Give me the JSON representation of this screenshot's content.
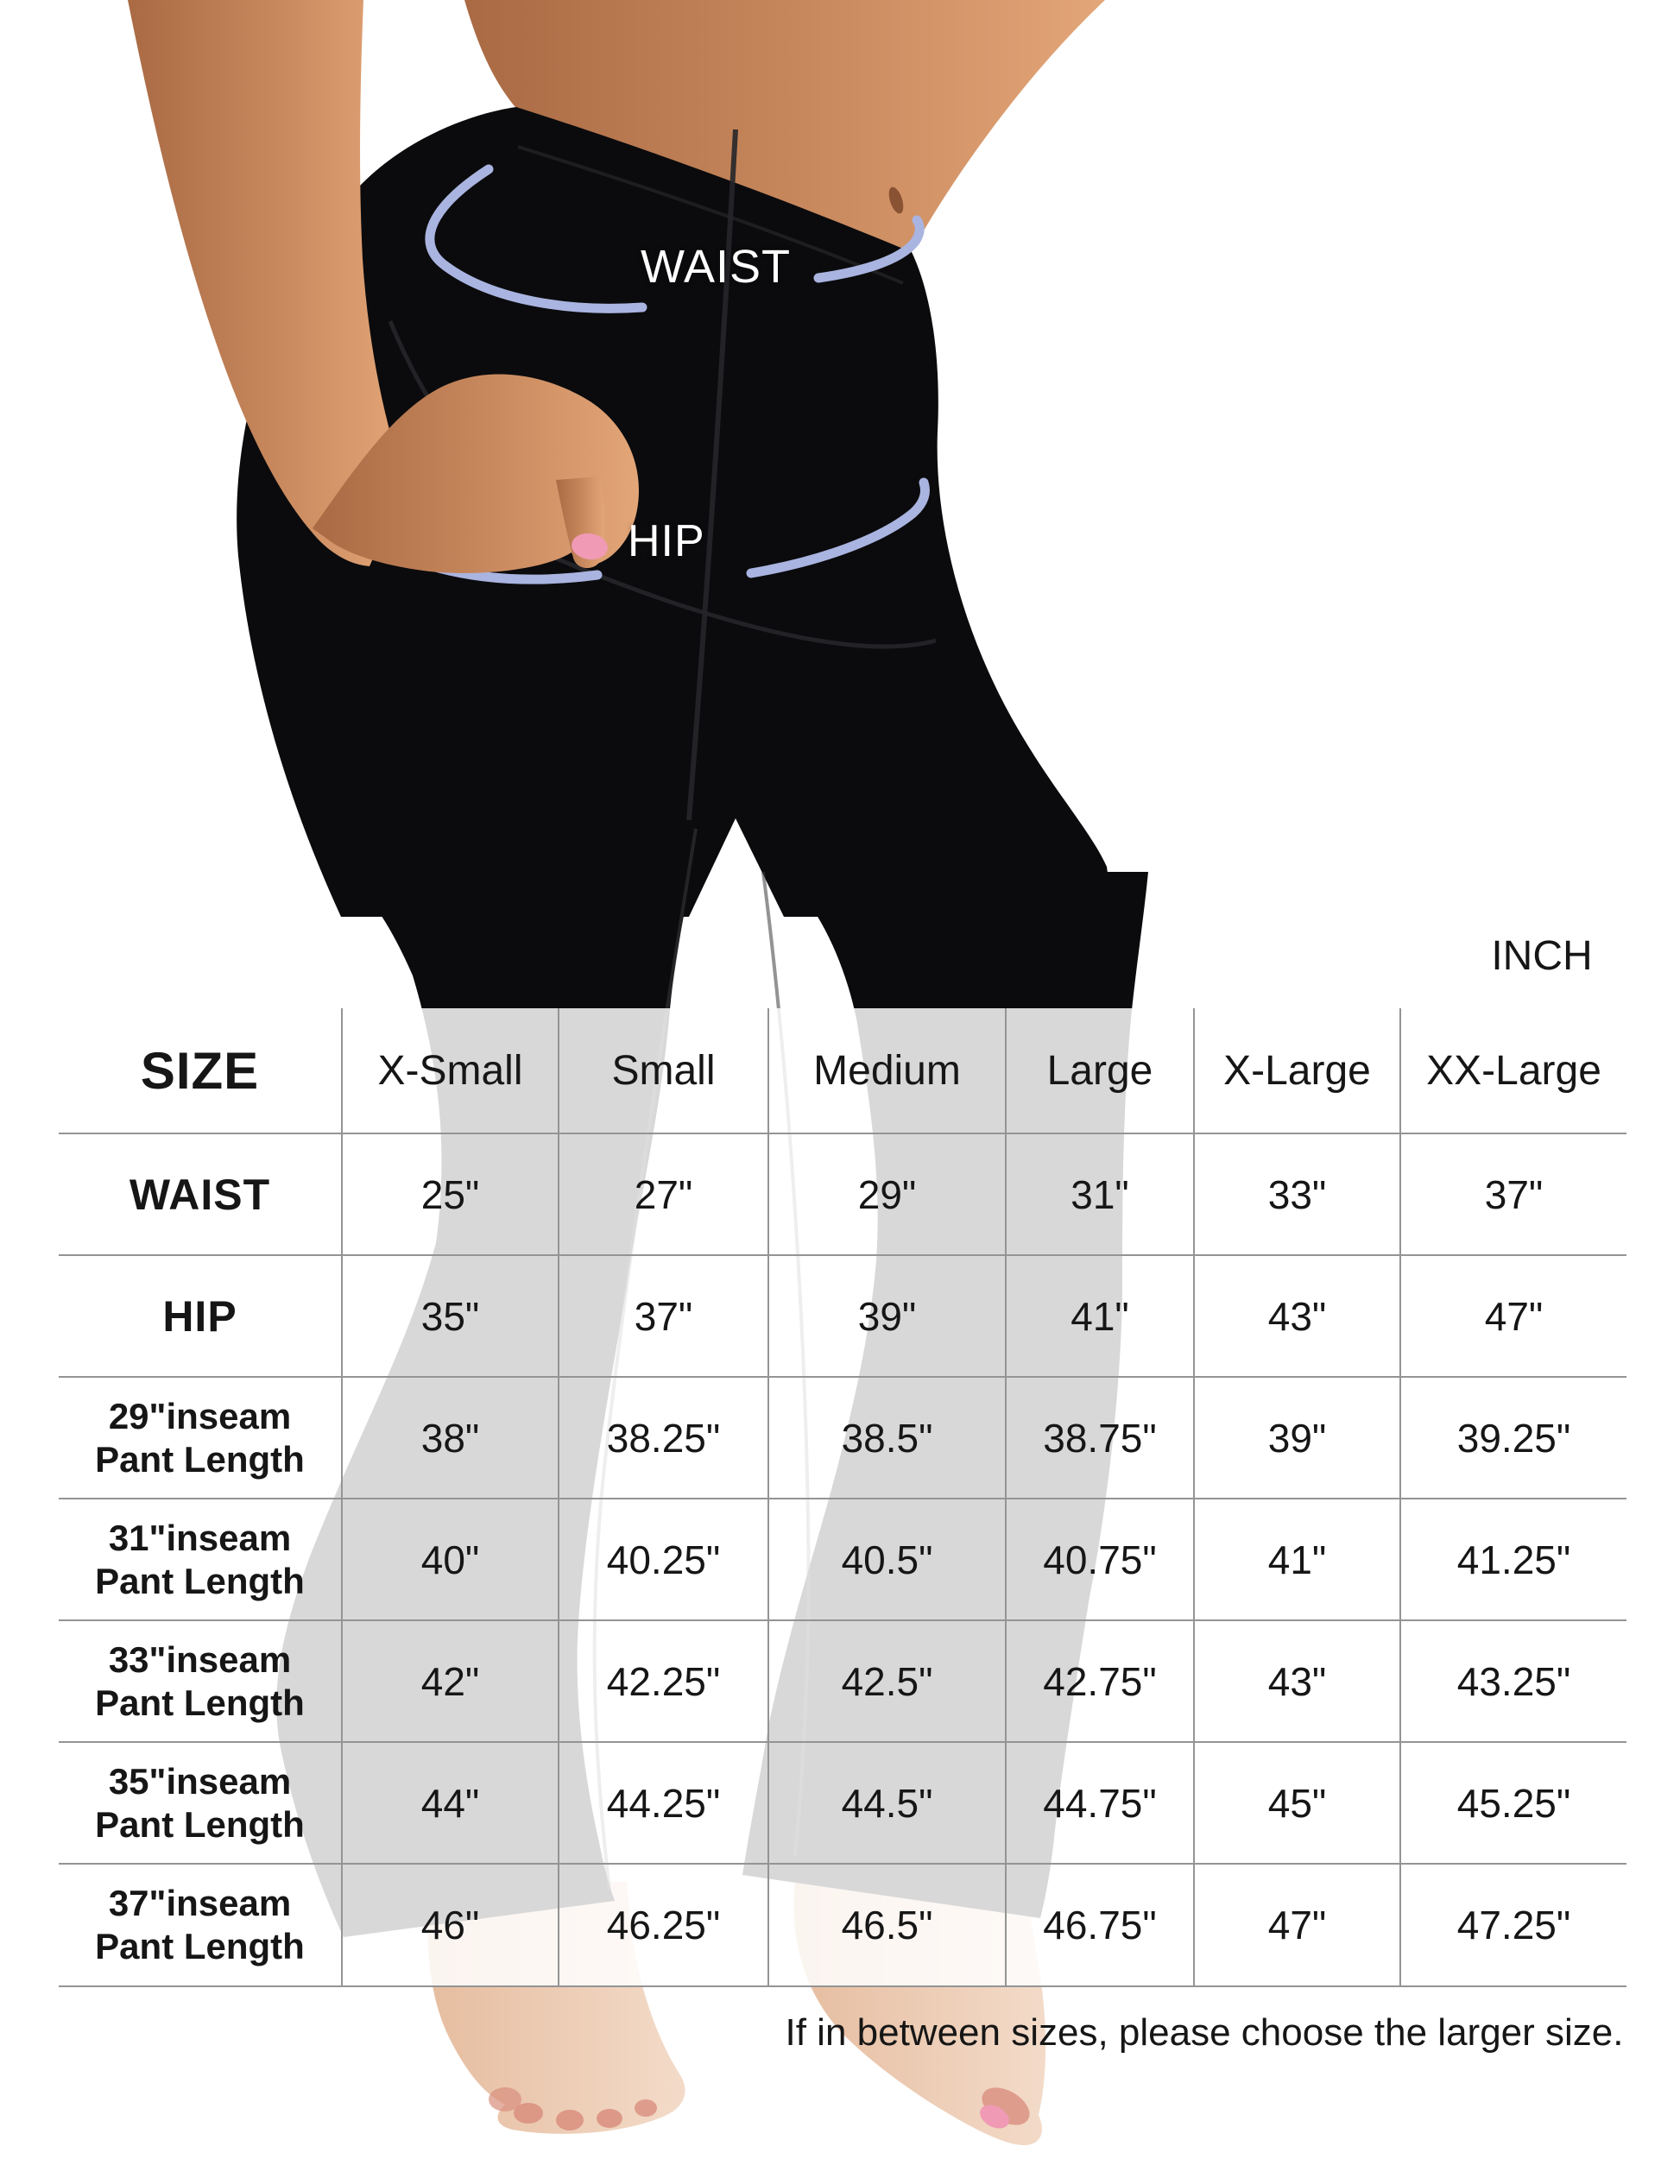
{
  "photo_callouts": {
    "waist": "WAIST",
    "hip": "HIP"
  },
  "unit_label": "INCH",
  "chart_data": {
    "type": "table",
    "title": "Bootcut yoga pants size chart",
    "unit": "INCH",
    "corner_label": "SIZE",
    "columns": [
      "X-Small",
      "Small",
      "Medium",
      "Large",
      "X-Large",
      "XX-Large"
    ],
    "rows": [
      {
        "label": "WAIST",
        "label2": "",
        "values": [
          "25\"",
          "27\"",
          "29\"",
          "31\"",
          "33\"",
          "37\""
        ]
      },
      {
        "label": "HIP",
        "label2": "",
        "values": [
          "35\"",
          "37\"",
          "39\"",
          "41\"",
          "43\"",
          "47\""
        ]
      },
      {
        "label": "29\"inseam",
        "label2": "Pant Length",
        "values": [
          "38\"",
          "38.25\"",
          "38.5\"",
          "38.75\"",
          "39\"",
          "39.25\""
        ]
      },
      {
        "label": "31\"inseam",
        "label2": "Pant Length",
        "values": [
          "40\"",
          "40.25\"",
          "40.5\"",
          "40.75\"",
          "41\"",
          "41.25\""
        ]
      },
      {
        "label": "33\"inseam",
        "label2": "Pant Length",
        "values": [
          "42\"",
          "42.25\"",
          "42.5\"",
          "42.75\"",
          "43\"",
          "43.25\""
        ]
      },
      {
        "label": "35\"inseam",
        "label2": "Pant Length",
        "values": [
          "44\"",
          "44.25\"",
          "44.5\"",
          "44.75\"",
          "45\"",
          "45.25\""
        ]
      },
      {
        "label": "37\"inseam",
        "label2": "Pant Length",
        "values": [
          "46\"",
          "46.25\"",
          "46.5\"",
          "46.75\"",
          "47\"",
          "47.25\""
        ]
      }
    ],
    "note": "If in between sizes, please choose the larger size."
  },
  "colors": {
    "arc_accent": "#a9b4e0",
    "pants": "#0b0b0d",
    "skin_shadow": "#a96a44",
    "skin_mid": "#c9895e",
    "skin_light": "#e3a678",
    "skin_pale_deep": "#e6bda0",
    "skin_pale": "#f3dbc9",
    "toe_rose": "#d98e7e",
    "nail_pink": "#f09ab5",
    "navel_brown": "#7c4629",
    "grid_line": "#949494",
    "ink": "#161616"
  }
}
